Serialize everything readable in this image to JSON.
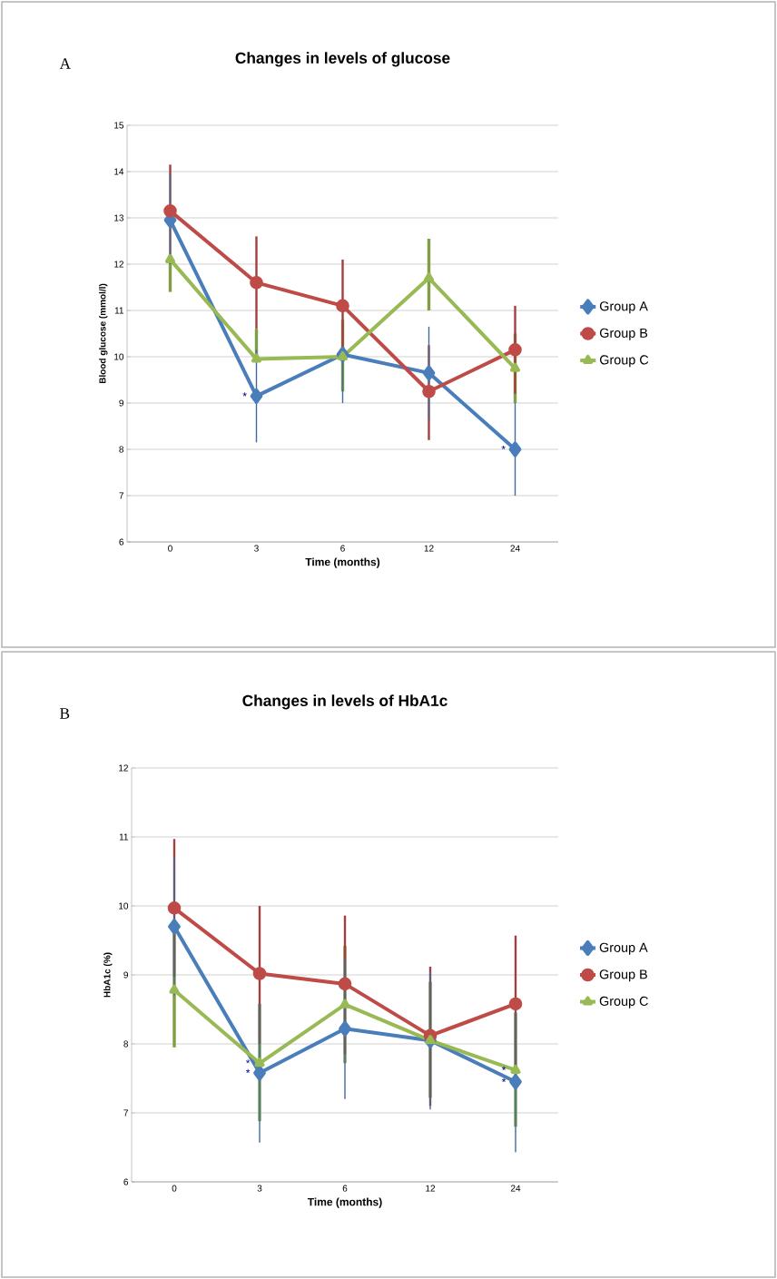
{
  "chart_data": [
    {
      "type": "line",
      "title": "Changes in levels of glucose",
      "xlabel": "Time (months)",
      "ylabel": "Blood glucose (mmol/l)",
      "categories": [
        "0",
        "3",
        "6",
        "12",
        "24"
      ],
      "ylim": [
        6,
        15
      ],
      "yticks": [
        6,
        7,
        8,
        9,
        10,
        11,
        12,
        13,
        14,
        15
      ],
      "grid": "y",
      "legend": "right",
      "series": [
        {
          "name": "Group A",
          "color": "#4a7ebb",
          "marker": "diamond",
          "values": [
            12.95,
            9.15,
            10.05,
            9.65,
            8.0
          ],
          "errors": [
            [
              12.0,
              13.95
            ],
            [
              8.15,
              10.15
            ],
            [
              9.0,
              10.1
            ],
            [
              8.65,
              10.65
            ],
            [
              7.0,
              9.0
            ]
          ]
        },
        {
          "name": "Group B",
          "color": "#be4b48",
          "marker": "circle",
          "values": [
            13.15,
            11.6,
            11.1,
            9.25,
            10.15
          ],
          "errors": [
            [
              12.15,
              14.15
            ],
            [
              10.6,
              12.6
            ],
            [
              10.1,
              12.1
            ],
            [
              8.2,
              10.25
            ],
            [
              9.2,
              11.1
            ]
          ]
        },
        {
          "name": "Group C",
          "color": "#98b954",
          "marker": "triangle",
          "values": [
            12.1,
            9.95,
            10.0,
            11.7,
            9.75
          ],
          "errors": [
            [
              11.4,
              12.2
            ],
            [
              9.9,
              10.6
            ],
            [
              9.25,
              10.8
            ],
            [
              11.0,
              12.55
            ],
            [
              9.0,
              10.5
            ]
          ]
        }
      ],
      "annotations": [
        "A",
        {
          "text": "*",
          "x": "3",
          "y": 9.15
        },
        {
          "text": "*",
          "x": "24",
          "y": 8.0
        }
      ]
    },
    {
      "type": "line",
      "title": "Changes in levels of HbA1c",
      "xlabel": "Time (months)",
      "ylabel": "HbA1c (%)",
      "categories": [
        "0",
        "3",
        "6",
        "12",
        "24"
      ],
      "ylim": [
        6,
        12
      ],
      "yticks": [
        6,
        7,
        8,
        9,
        10,
        11,
        12
      ],
      "grid": "y",
      "legend": "right",
      "series": [
        {
          "name": "Group A",
          "color": "#4a7ebb",
          "marker": "diamond",
          "values": [
            9.7,
            7.58,
            8.22,
            8.05,
            7.45
          ],
          "errors": [
            [
              8.7,
              10.7
            ],
            [
              6.57,
              8.58
            ],
            [
              7.2,
              9.22
            ],
            [
              7.05,
              9.05
            ],
            [
              6.43,
              8.45
            ]
          ]
        },
        {
          "name": "Group B",
          "color": "#be4b48",
          "marker": "circle",
          "values": [
            9.97,
            9.02,
            8.87,
            8.12,
            8.58
          ],
          "errors": [
            [
              8.97,
              10.97
            ],
            [
              8.0,
              10.0
            ],
            [
              7.85,
              9.86
            ],
            [
              7.1,
              9.12
            ],
            [
              7.6,
              9.57
            ]
          ]
        },
        {
          "name": "Group C",
          "color": "#98b954",
          "marker": "triangle",
          "values": [
            8.78,
            7.72,
            8.57,
            8.05,
            7.62
          ],
          "errors": [
            [
              7.95,
              9.62
            ],
            [
              6.88,
              8.58
            ],
            [
              7.72,
              9.42
            ],
            [
              7.22,
              8.9
            ],
            [
              6.8,
              8.45
            ]
          ]
        }
      ],
      "annotations": [
        "B",
        {
          "text": "*",
          "x": "3",
          "y": 7.72
        },
        {
          "text": "*",
          "x": "3",
          "y": 7.58
        },
        {
          "text": "*",
          "x": "24",
          "y": 7.62
        },
        {
          "text": "*",
          "x": "24",
          "y": 7.45
        }
      ]
    }
  ]
}
